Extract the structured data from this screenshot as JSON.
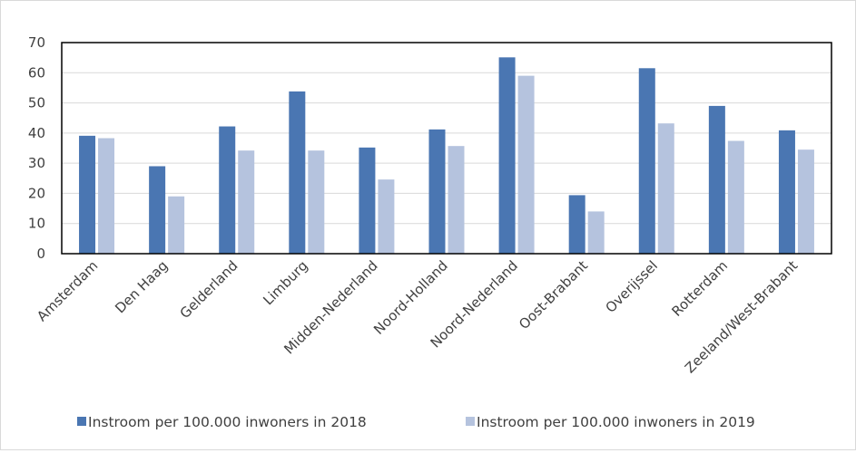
{
  "chart_data": {
    "type": "bar",
    "title": "",
    "xlabel": "",
    "ylabel": "",
    "ylim": [
      0,
      70
    ],
    "yticks": [
      0,
      10,
      20,
      30,
      40,
      50,
      60,
      70
    ],
    "grid": true,
    "legend_position": "bottom",
    "categories": [
      "Amsterdam",
      "Den Haag",
      "Gelderland",
      "Limburg",
      "Midden-Nederland",
      "Noord-Holland",
      "Noord-Nederland",
      "Oost-Brabant",
      "Overijssel",
      "Rotterdam",
      "Zeeland/West-Brabant"
    ],
    "series": [
      {
        "name": "Instroom per 100.000 inwoners in 2018",
        "color": "#4a76b2",
        "values": [
          39.1,
          29.0,
          42.2,
          53.8,
          35.2,
          41.2,
          65.1,
          19.4,
          61.5,
          49.0,
          40.9
        ]
      },
      {
        "name": "Instroom per 100.000 inwoners in 2019",
        "color": "#b5c3de",
        "values": [
          38.3,
          19.0,
          34.2,
          34.2,
          24.6,
          35.7,
          59.0,
          14.0,
          43.2,
          37.4,
          34.5
        ]
      }
    ]
  }
}
